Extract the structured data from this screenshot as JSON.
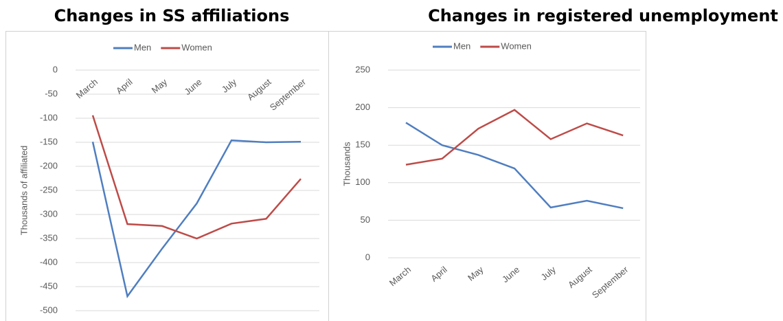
{
  "chart_data": [
    {
      "type": "line",
      "title": "Changes in SS affiliations",
      "y_label": "Thousands of affiliated",
      "categories": [
        "March",
        "April",
        "May",
        "June",
        "July",
        "August",
        "September"
      ],
      "series": [
        {
          "name": "Men",
          "color": "#4f7ec0",
          "values": [
            -149,
            -470,
            -371,
            -277,
            -146,
            -150,
            -149
          ]
        },
        {
          "name": "Women",
          "color": "#bd4b48",
          "values": [
            -94,
            -320,
            -324,
            -350,
            -319,
            -309,
            -226
          ]
        }
      ],
      "ylim": [
        -500,
        0
      ],
      "yticks": [
        -500,
        -450,
        -400,
        -350,
        -300,
        -250,
        -200,
        -150,
        -100,
        -50,
        0
      ],
      "grid": true,
      "legend": "top"
    },
    {
      "type": "line",
      "title": "Changes in registered unemployment",
      "y_label": "Thousands",
      "categories": [
        "March",
        "April",
        "May",
        "June",
        "July",
        "August",
        "September"
      ],
      "series": [
        {
          "name": "Men",
          "color": "#4f7ec0",
          "values": [
            180,
            150,
            137,
            119,
            67,
            76,
            66
          ]
        },
        {
          "name": "Women",
          "color": "#bd4b48",
          "values": [
            124,
            132,
            172,
            197,
            158,
            179,
            163
          ]
        }
      ],
      "ylim": [
        0,
        250
      ],
      "yticks": [
        0,
        50,
        100,
        150,
        200,
        250
      ],
      "grid": true,
      "legend": "top"
    }
  ]
}
